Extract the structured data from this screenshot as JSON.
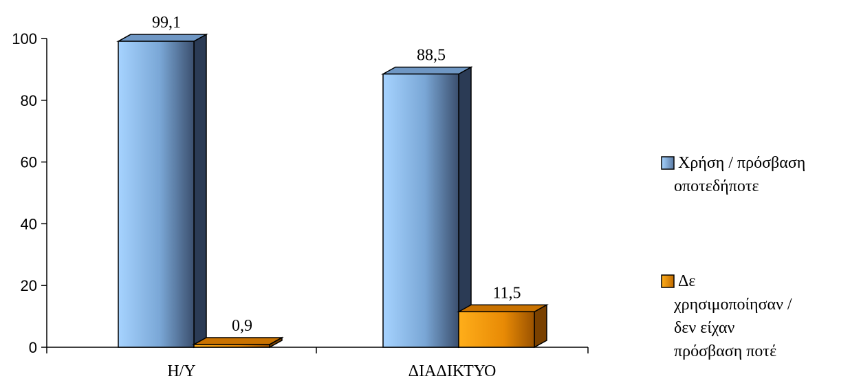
{
  "chart_data": {
    "type": "bar",
    "categories": [
      "H/Y",
      "ΔΙΑΔΙΚΤΥΟ"
    ],
    "series": [
      {
        "name": "Χρήση / πρόσβαση οποτεδήποτε",
        "values": [
          99.1,
          88.5
        ],
        "labels": [
          "99,1",
          "88,5"
        ],
        "color": "#8fc3f5"
      },
      {
        "name": "Δε χρησιμοποίησαν / δεν είχαν πρόσβαση ποτέ",
        "values": [
          0.9,
          11.5
        ],
        "labels": [
          "0,9",
          "11,5"
        ],
        "color": "#f5a00f"
      }
    ],
    "title": "",
    "xlabel": "",
    "ylabel": "",
    "ylim": [
      0,
      100
    ],
    "yticks": [
      "0",
      "20",
      "40",
      "60",
      "80",
      "100"
    ],
    "grid": false,
    "legend_position": "right",
    "style": "3d-bar"
  },
  "legend": {
    "items": [
      {
        "lines": [
          "Χρήση / πρόσβαση",
          "οποτεδήποτε"
        ],
        "color": "#8fc3f5"
      },
      {
        "lines": [
          "Δε",
          "χρησιμοποίησαν /",
          "δεν είχαν",
          "πρόσβαση ποτέ"
        ],
        "color": "#f5a00f"
      }
    ]
  }
}
